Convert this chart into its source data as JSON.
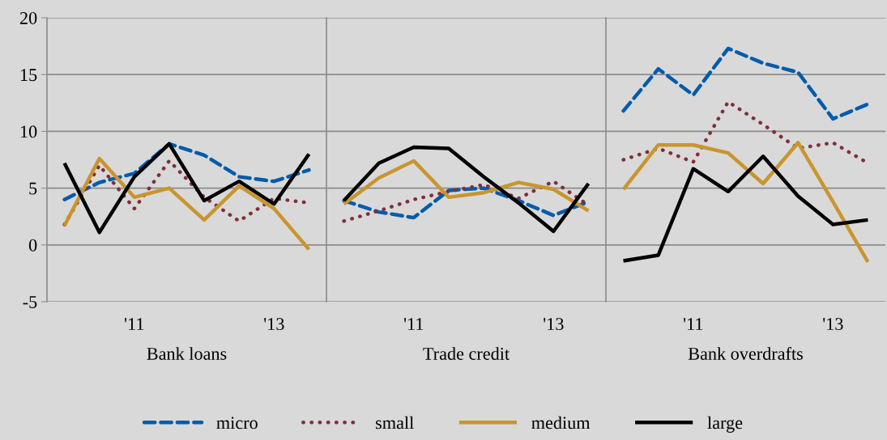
{
  "chart_data": [
    {
      "type": "line",
      "xlabel": "Bank loans",
      "categories": [
        null,
        null,
        "'11",
        null,
        null,
        null,
        "'13",
        null
      ],
      "ylim": [
        -5,
        20
      ],
      "yticks": [
        -5,
        0,
        5,
        10,
        15,
        20
      ],
      "grid": "y",
      "legend": "bottom",
      "series": [
        {
          "name": "micro",
          "color": "#005bac",
          "line_style": "dashed",
          "values": [
            4.0,
            5.5,
            6.3,
            8.9,
            7.9,
            6.0,
            5.6,
            6.6
          ]
        },
        {
          "name": "small",
          "color": "#7f2f3a",
          "line_style": "dotted",
          "values": [
            1.8,
            7.0,
            3.2,
            7.4,
            4.2,
            2.1,
            4.1,
            3.7
          ]
        },
        {
          "name": "medium",
          "color": "#c8952e",
          "line_style": "solid",
          "values": [
            1.7,
            7.6,
            4.2,
            5.0,
            2.2,
            5.2,
            3.2,
            -0.4
          ]
        },
        {
          "name": "large",
          "color": "#000000",
          "line_style": "solid",
          "values": [
            7.2,
            1.1,
            6.0,
            8.9,
            3.9,
            5.6,
            3.6,
            8.0
          ]
        }
      ]
    },
    {
      "type": "line",
      "xlabel": "Trade credit",
      "categories": [
        null,
        null,
        "'11",
        null,
        null,
        null,
        "'13",
        null
      ],
      "ylim": [
        -5,
        20
      ],
      "yticks": [
        -5,
        0,
        5,
        10,
        15,
        20
      ],
      "tick_labels": "x",
      "grid": "y",
      "legend": "bottom",
      "series": [
        {
          "name": "micro",
          "color": "#005bac",
          "line_style": "dashed",
          "values": [
            3.9,
            2.9,
            2.4,
            4.8,
            5.0,
            3.9,
            2.6,
            3.8
          ]
        },
        {
          "name": "small",
          "color": "#7f2f3a",
          "line_style": "dotted",
          "values": [
            2.1,
            3.0,
            4.0,
            4.7,
            5.3,
            4.1,
            5.6,
            3.5
          ]
        },
        {
          "name": "medium",
          "color": "#c8952e",
          "line_style": "solid",
          "values": [
            3.6,
            5.9,
            7.4,
            4.2,
            4.6,
            5.5,
            4.9,
            3.0
          ]
        },
        {
          "name": "large",
          "color": "#000000",
          "line_style": "solid",
          "values": [
            3.9,
            7.2,
            8.6,
            8.5,
            6.0,
            3.7,
            1.2,
            5.4
          ]
        }
      ]
    },
    {
      "type": "line",
      "xlabel": "Bank overdrafts",
      "categories": [
        null,
        null,
        "'11",
        null,
        null,
        null,
        "'13",
        null
      ],
      "ylim": [
        -5,
        20
      ],
      "yticks": [
        -5,
        0,
        5,
        10,
        15,
        20
      ],
      "tick_labels": "x",
      "grid": "y",
      "legend": "bottom",
      "series": [
        {
          "name": "micro",
          "color": "#005bac",
          "line_style": "dashed",
          "values": [
            11.8,
            15.5,
            13.2,
            17.3,
            16.0,
            15.2,
            11.1,
            12.4
          ]
        },
        {
          "name": "small",
          "color": "#7f2f3a",
          "line_style": "dotted",
          "values": [
            7.5,
            8.5,
            7.3,
            12.6,
            10.6,
            8.5,
            9.0,
            7.2
          ]
        },
        {
          "name": "medium",
          "color": "#c8952e",
          "line_style": "solid",
          "values": [
            4.9,
            8.8,
            8.8,
            8.1,
            5.4,
            9.0,
            3.8,
            -1.5
          ]
        },
        {
          "name": "large",
          "color": "#000000",
          "line_style": "solid",
          "values": [
            -1.4,
            -0.9,
            6.7,
            4.7,
            7.8,
            4.3,
            1.8,
            2.2
          ]
        }
      ]
    }
  ]
}
